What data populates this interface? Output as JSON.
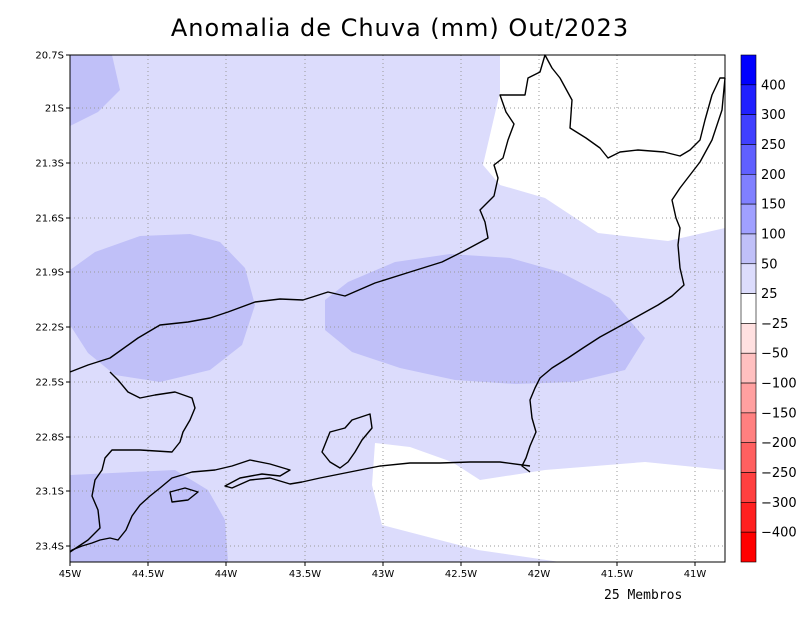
{
  "map": {
    "title": "Anomalia de Chuva (mm) Out/2023",
    "footer": "25 Membros",
    "lat_labels": [
      "20.7S",
      "21S",
      "21.3S",
      "21.6S",
      "21.9S",
      "22.2S",
      "22.5S",
      "22.8S",
      "23.1S",
      "23.4S"
    ],
    "lon_labels": [
      "45W",
      "44.5W",
      "44W",
      "43.5W",
      "43W",
      "42.5W",
      "42W",
      "41.5W",
      "41W"
    ],
    "extent": {
      "lon_min": -45.0,
      "lon_max": -40.7,
      "lat_min": -23.5,
      "lat_max": -20.7
    },
    "fill_colors": {
      "above_25": "#dcdcfc",
      "above_50": "#c0c0f8",
      "zero": "#ffffff"
    },
    "coastline_color": "#000000"
  },
  "colorbar": {
    "levels": [
      {
        "label": "400",
        "color": "#0000ff"
      },
      {
        "label": "300",
        "color": "#2020ff"
      },
      {
        "label": "250",
        "color": "#4040ff"
      },
      {
        "label": "200",
        "color": "#6060ff"
      },
      {
        "label": "150",
        "color": "#8080ff"
      },
      {
        "label": "100",
        "color": "#a0a0ff"
      },
      {
        "label": "50",
        "color": "#c0c0f8"
      },
      {
        "label": "25",
        "color": "#dcdcfc"
      },
      {
        "label": "−25",
        "color": "#ffffff"
      },
      {
        "label": "−50",
        "color": "#ffe0e0"
      },
      {
        "label": "−100",
        "color": "#ffc0c0"
      },
      {
        "label": "−150",
        "color": "#ffa0a0"
      },
      {
        "label": "−200",
        "color": "#ff8080"
      },
      {
        "label": "−250",
        "color": "#ff6060"
      },
      {
        "label": "−300",
        "color": "#ff4040"
      },
      {
        "label": "−400",
        "color": "#ff2020"
      },
      {
        "label": "",
        "color": "#ff0000"
      }
    ]
  }
}
